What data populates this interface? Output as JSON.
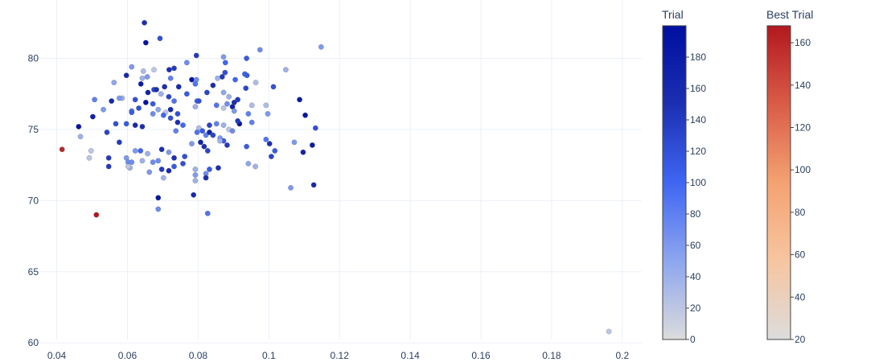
{
  "colors": {
    "trial_scale": [
      "#dcdcdc",
      "#8da6ee",
      "#3f66f3",
      "#1c2fb1",
      "#000fa0"
    ],
    "best_scale": [
      "#dcdcdc",
      "#f7c5a0",
      "#f4a272",
      "#d95c47",
      "#b21820"
    ],
    "grid": "#ebf0f8",
    "text": "#2a3f5f"
  },
  "chart_data": {
    "type": "scatter",
    "xlim": [
      0.0335,
      0.2055
    ],
    "ylim": [
      59.9,
      84.1
    ],
    "x_ticks": [
      0.04,
      0.06,
      0.08,
      0.1,
      0.12,
      0.14,
      0.16,
      0.18,
      0.2
    ],
    "x_tick_labels": [
      "0.04",
      "0.06",
      "0.08",
      "0.1",
      "0.12",
      "0.14",
      "0.16",
      "0.18",
      "0.2"
    ],
    "y_ticks": [
      60,
      65,
      70,
      75,
      80
    ],
    "y_tick_labels": [
      "60",
      "65",
      "70",
      "75",
      "80"
    ],
    "grid": true,
    "colorbars": [
      {
        "title": "Trial",
        "range": [
          0,
          200
        ],
        "ticks": [
          0,
          20,
          40,
          60,
          80,
          100,
          120,
          140,
          160,
          180
        ],
        "tick_labels": [
          "0",
          "20",
          "40",
          "60",
          "80",
          "100",
          "120",
          "140",
          "160",
          "180"
        ]
      },
      {
        "title": "Best Trial",
        "range": [
          20,
          168
        ],
        "ticks": [
          20,
          40,
          60,
          80,
          100,
          120,
          140,
          160
        ],
        "tick_labels": [
          "20",
          "40",
          "60",
          "80",
          "100",
          "120",
          "140",
          "160"
        ]
      }
    ],
    "series": [
      {
        "points": [
          [
            0.0648,
            82.5,
            150
          ],
          [
            0.0652,
            81.1,
            190
          ],
          [
            0.0692,
            81.4,
            120
          ],
          [
            0.0795,
            80.2,
            140
          ],
          [
            0.0872,
            80.1,
            60
          ],
          [
            0.0937,
            80.0,
            110
          ],
          [
            0.0975,
            80.6,
            70
          ],
          [
            0.1148,
            80.8,
            60
          ],
          [
            0.0877,
            79.7,
            100
          ],
          [
            0.0768,
            79.7,
            70
          ],
          [
            0.0612,
            79.4,
            60
          ],
          [
            0.0645,
            79.1,
            30
          ],
          [
            0.0675,
            79.2,
            20
          ],
          [
            0.0718,
            79.2,
            150
          ],
          [
            0.0732,
            79.3,
            140
          ],
          [
            0.0876,
            79.0,
            120
          ],
          [
            0.0932,
            78.9,
            100
          ],
          [
            0.0938,
            78.8,
            110
          ],
          [
            0.1048,
            79.2,
            40
          ],
          [
            0.0597,
            78.8,
            160
          ],
          [
            0.0642,
            78.6,
            40
          ],
          [
            0.0656,
            78.7,
            60
          ],
          [
            0.0722,
            78.6,
            80
          ],
          [
            0.0782,
            78.5,
            190
          ],
          [
            0.0795,
            78.5,
            70
          ],
          [
            0.0868,
            78.7,
            140
          ],
          [
            0.0905,
            78.5,
            100
          ],
          [
            0.0963,
            78.3,
            30
          ],
          [
            0.1013,
            78.0,
            120
          ],
          [
            0.0562,
            78.3,
            50
          ],
          [
            0.0638,
            78.2,
            180
          ],
          [
            0.0675,
            77.8,
            130
          ],
          [
            0.0658,
            77.6,
            170
          ],
          [
            0.0705,
            78.0,
            150
          ],
          [
            0.0745,
            78.0,
            160
          ],
          [
            0.0768,
            77.5,
            110
          ],
          [
            0.0792,
            78.2,
            90
          ],
          [
            0.0825,
            77.6,
            130
          ],
          [
            0.0842,
            78.1,
            150
          ],
          [
            0.0855,
            78.6,
            40
          ],
          [
            0.0872,
            77.6,
            50
          ],
          [
            0.0935,
            77.9,
            130
          ],
          [
            0.0732,
            77.0,
            90
          ],
          [
            0.0717,
            77.3,
            130
          ],
          [
            0.0695,
            77.5,
            40
          ],
          [
            0.0682,
            77.8,
            150
          ],
          [
            0.0622,
            77.1,
            120
          ],
          [
            0.0585,
            77.2,
            40
          ],
          [
            0.0577,
            77.2,
            60
          ],
          [
            0.0507,
            77.1,
            80
          ],
          [
            0.0532,
            76.4,
            60
          ],
          [
            0.0555,
            77.0,
            160
          ],
          [
            0.0612,
            76.3,
            90
          ],
          [
            0.0632,
            76.5,
            120
          ],
          [
            0.0652,
            76.9,
            190
          ],
          [
            0.0672,
            76.8,
            110
          ],
          [
            0.0687,
            76.4,
            50
          ],
          [
            0.0708,
            76.2,
            20
          ],
          [
            0.0722,
            76.4,
            160
          ],
          [
            0.0742,
            76.1,
            120
          ],
          [
            0.0792,
            76.6,
            40
          ],
          [
            0.0797,
            77.0,
            100
          ],
          [
            0.0802,
            77.0,
            120
          ],
          [
            0.0852,
            76.7,
            90
          ],
          [
            0.0872,
            76.5,
            20
          ],
          [
            0.0882,
            76.8,
            70
          ],
          [
            0.0897,
            76.6,
            170
          ],
          [
            0.0902,
            76.9,
            150
          ],
          [
            0.0912,
            77.1,
            140
          ],
          [
            0.0952,
            76.7,
            30
          ],
          [
            0.0992,
            76.7,
            30
          ],
          [
            0.0942,
            76.1,
            80
          ],
          [
            0.0997,
            76.1,
            60
          ],
          [
            0.1087,
            77.1,
            180
          ],
          [
            0.1103,
            76.0,
            190
          ],
          [
            0.0887,
            77.3,
            40
          ],
          [
            0.0902,
            76.3,
            60
          ],
          [
            0.0917,
            75.4,
            190
          ],
          [
            0.0952,
            75.5,
            80
          ],
          [
            0.0612,
            76.2,
            110
          ],
          [
            0.0672,
            76.1,
            70
          ],
          [
            0.0702,
            76.0,
            100
          ],
          [
            0.0722,
            75.8,
            120
          ],
          [
            0.0742,
            75.5,
            150
          ],
          [
            0.0757,
            75.3,
            100
          ],
          [
            0.0802,
            75.1,
            30
          ],
          [
            0.0832,
            75.3,
            130
          ],
          [
            0.0852,
            75.4,
            80
          ],
          [
            0.0872,
            75.3,
            40
          ],
          [
            0.0887,
            75.0,
            20
          ],
          [
            0.0897,
            74.9,
            70
          ],
          [
            0.0912,
            75.6,
            140
          ],
          [
            0.0462,
            75.2,
            190
          ],
          [
            0.0502,
            75.9,
            170
          ],
          [
            0.0542,
            74.8,
            130
          ],
          [
            0.0567,
            75.4,
            120
          ],
          [
            0.0597,
            75.4,
            110
          ],
          [
            0.0622,
            75.3,
            160
          ],
          [
            0.0642,
            75.2,
            150
          ],
          [
            0.0737,
            74.9,
            80
          ],
          [
            0.0797,
            74.8,
            90
          ],
          [
            0.0812,
            74.9,
            110
          ],
          [
            0.0822,
            74.6,
            80
          ],
          [
            0.0832,
            74.8,
            170
          ],
          [
            0.0842,
            74.6,
            130
          ],
          [
            0.0862,
            74.4,
            60
          ],
          [
            0.0872,
            74.2,
            110
          ],
          [
            0.0882,
            73.9,
            140
          ],
          [
            0.0807,
            74.1,
            170
          ],
          [
            0.0817,
            73.8,
            150
          ],
          [
            0.0827,
            73.5,
            130
          ],
          [
            0.0862,
            74.2,
            40
          ],
          [
            0.0782,
            74.0,
            60
          ],
          [
            0.0992,
            74.3,
            90
          ],
          [
            0.1002,
            74.0,
            150
          ],
          [
            0.0937,
            73.8,
            110
          ],
          [
            0.0467,
            74.5,
            40
          ],
          [
            0.0577,
            74.1,
            140
          ],
          [
            0.1017,
            73.5,
            110
          ],
          [
            0.1072,
            74.1,
            60
          ],
          [
            0.1123,
            73.9,
            180
          ],
          [
            0.1132,
            75.1,
            120
          ],
          [
            0.1097,
            73.4,
            170
          ],
          [
            0.0497,
            73.5,
            20
          ],
          [
            0.0492,
            73.0,
            20
          ],
          [
            0.0547,
            73.0,
            140
          ],
          [
            0.0622,
            73.5,
            60
          ],
          [
            0.0637,
            73.5,
            100
          ],
          [
            0.0657,
            73.3,
            40
          ],
          [
            0.0697,
            73.6,
            150
          ],
          [
            0.0717,
            73.4,
            60
          ],
          [
            0.0732,
            73.0,
            150
          ],
          [
            0.0762,
            73.1,
            120
          ],
          [
            0.0597,
            73.0,
            60
          ],
          [
            0.0602,
            72.7,
            70
          ],
          [
            0.0612,
            72.7,
            70
          ],
          [
            0.0642,
            72.8,
            40
          ],
          [
            0.0672,
            72.7,
            70
          ],
          [
            0.0687,
            72.8,
            70
          ],
          [
            0.0547,
            72.4,
            140
          ],
          [
            0.0607,
            72.3,
            40
          ],
          [
            0.0732,
            72.4,
            110
          ],
          [
            0.0757,
            72.6,
            120
          ],
          [
            0.0832,
            72.2,
            110
          ],
          [
            0.0857,
            72.3,
            150
          ],
          [
            0.0942,
            72.6,
            50
          ],
          [
            0.0962,
            72.4,
            40
          ],
          [
            0.1007,
            73.1,
            130
          ],
          [
            0.0662,
            72.0,
            60
          ],
          [
            0.0697,
            72.2,
            140
          ],
          [
            0.0717,
            72.1,
            160
          ],
          [
            0.0702,
            71.6,
            40
          ],
          [
            0.0792,
            72.2,
            40
          ],
          [
            0.0792,
            71.8,
            60
          ],
          [
            0.0822,
            71.9,
            70
          ],
          [
            0.0822,
            71.6,
            150
          ],
          [
            0.0792,
            71.4,
            40
          ],
          [
            0.1062,
            70.9,
            60
          ],
          [
            0.1127,
            71.1,
            160
          ],
          [
            0.0687,
            70.2,
            190
          ],
          [
            0.0787,
            70.4,
            160
          ],
          [
            0.0687,
            69.4,
            70
          ],
          [
            0.0827,
            69.1,
            90
          ],
          [
            0.0602,
            72.4,
            20
          ],
          [
            0.1962,
            60.8,
            20
          ]
        ]
      },
      {
        "points": [
          [
            0.0415,
            73.6,
            160
          ],
          [
            0.0512,
            69.0,
            168
          ]
        ]
      }
    ]
  }
}
